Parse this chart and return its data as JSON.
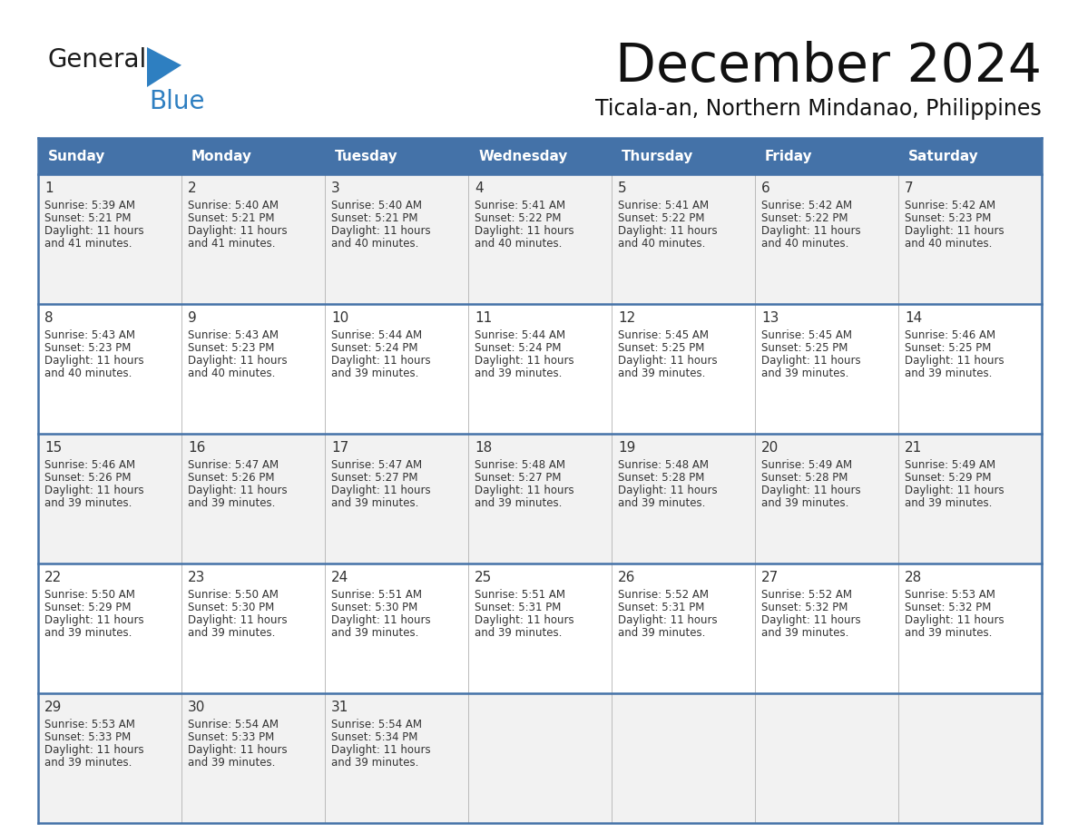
{
  "title": "December 2024",
  "subtitle": "Ticala-an, Northern Mindanao, Philippines",
  "header_color": "#4472a8",
  "header_text_color": "#ffffff",
  "header_days": [
    "Sunday",
    "Monday",
    "Tuesday",
    "Wednesday",
    "Thursday",
    "Friday",
    "Saturday"
  ],
  "row_bg_odd": "#f2f2f2",
  "row_bg_even": "#ffffff",
  "border_color": "#4472a8",
  "text_color": "#333333",
  "days": [
    {
      "day": 1,
      "col": 0,
      "row": 0,
      "sunrise": "5:39 AM",
      "sunset": "5:21 PM",
      "daylight": "11 hours and 41 minutes."
    },
    {
      "day": 2,
      "col": 1,
      "row": 0,
      "sunrise": "5:40 AM",
      "sunset": "5:21 PM",
      "daylight": "11 hours and 41 minutes."
    },
    {
      "day": 3,
      "col": 2,
      "row": 0,
      "sunrise": "5:40 AM",
      "sunset": "5:21 PM",
      "daylight": "11 hours and 40 minutes."
    },
    {
      "day": 4,
      "col": 3,
      "row": 0,
      "sunrise": "5:41 AM",
      "sunset": "5:22 PM",
      "daylight": "11 hours and 40 minutes."
    },
    {
      "day": 5,
      "col": 4,
      "row": 0,
      "sunrise": "5:41 AM",
      "sunset": "5:22 PM",
      "daylight": "11 hours and 40 minutes."
    },
    {
      "day": 6,
      "col": 5,
      "row": 0,
      "sunrise": "5:42 AM",
      "sunset": "5:22 PM",
      "daylight": "11 hours and 40 minutes."
    },
    {
      "day": 7,
      "col": 6,
      "row": 0,
      "sunrise": "5:42 AM",
      "sunset": "5:23 PM",
      "daylight": "11 hours and 40 minutes."
    },
    {
      "day": 8,
      "col": 0,
      "row": 1,
      "sunrise": "5:43 AM",
      "sunset": "5:23 PM",
      "daylight": "11 hours and 40 minutes."
    },
    {
      "day": 9,
      "col": 1,
      "row": 1,
      "sunrise": "5:43 AM",
      "sunset": "5:23 PM",
      "daylight": "11 hours and 40 minutes."
    },
    {
      "day": 10,
      "col": 2,
      "row": 1,
      "sunrise": "5:44 AM",
      "sunset": "5:24 PM",
      "daylight": "11 hours and 39 minutes."
    },
    {
      "day": 11,
      "col": 3,
      "row": 1,
      "sunrise": "5:44 AM",
      "sunset": "5:24 PM",
      "daylight": "11 hours and 39 minutes."
    },
    {
      "day": 12,
      "col": 4,
      "row": 1,
      "sunrise": "5:45 AM",
      "sunset": "5:25 PM",
      "daylight": "11 hours and 39 minutes."
    },
    {
      "day": 13,
      "col": 5,
      "row": 1,
      "sunrise": "5:45 AM",
      "sunset": "5:25 PM",
      "daylight": "11 hours and 39 minutes."
    },
    {
      "day": 14,
      "col": 6,
      "row": 1,
      "sunrise": "5:46 AM",
      "sunset": "5:25 PM",
      "daylight": "11 hours and 39 minutes."
    },
    {
      "day": 15,
      "col": 0,
      "row": 2,
      "sunrise": "5:46 AM",
      "sunset": "5:26 PM",
      "daylight": "11 hours and 39 minutes."
    },
    {
      "day": 16,
      "col": 1,
      "row": 2,
      "sunrise": "5:47 AM",
      "sunset": "5:26 PM",
      "daylight": "11 hours and 39 minutes."
    },
    {
      "day": 17,
      "col": 2,
      "row": 2,
      "sunrise": "5:47 AM",
      "sunset": "5:27 PM",
      "daylight": "11 hours and 39 minutes."
    },
    {
      "day": 18,
      "col": 3,
      "row": 2,
      "sunrise": "5:48 AM",
      "sunset": "5:27 PM",
      "daylight": "11 hours and 39 minutes."
    },
    {
      "day": 19,
      "col": 4,
      "row": 2,
      "sunrise": "5:48 AM",
      "sunset": "5:28 PM",
      "daylight": "11 hours and 39 minutes."
    },
    {
      "day": 20,
      "col": 5,
      "row": 2,
      "sunrise": "5:49 AM",
      "sunset": "5:28 PM",
      "daylight": "11 hours and 39 minutes."
    },
    {
      "day": 21,
      "col": 6,
      "row": 2,
      "sunrise": "5:49 AM",
      "sunset": "5:29 PM",
      "daylight": "11 hours and 39 minutes."
    },
    {
      "day": 22,
      "col": 0,
      "row": 3,
      "sunrise": "5:50 AM",
      "sunset": "5:29 PM",
      "daylight": "11 hours and 39 minutes."
    },
    {
      "day": 23,
      "col": 1,
      "row": 3,
      "sunrise": "5:50 AM",
      "sunset": "5:30 PM",
      "daylight": "11 hours and 39 minutes."
    },
    {
      "day": 24,
      "col": 2,
      "row": 3,
      "sunrise": "5:51 AM",
      "sunset": "5:30 PM",
      "daylight": "11 hours and 39 minutes."
    },
    {
      "day": 25,
      "col": 3,
      "row": 3,
      "sunrise": "5:51 AM",
      "sunset": "5:31 PM",
      "daylight": "11 hours and 39 minutes."
    },
    {
      "day": 26,
      "col": 4,
      "row": 3,
      "sunrise": "5:52 AM",
      "sunset": "5:31 PM",
      "daylight": "11 hours and 39 minutes."
    },
    {
      "day": 27,
      "col": 5,
      "row": 3,
      "sunrise": "5:52 AM",
      "sunset": "5:32 PM",
      "daylight": "11 hours and 39 minutes."
    },
    {
      "day": 28,
      "col": 6,
      "row": 3,
      "sunrise": "5:53 AM",
      "sunset": "5:32 PM",
      "daylight": "11 hours and 39 minutes."
    },
    {
      "day": 29,
      "col": 0,
      "row": 4,
      "sunrise": "5:53 AM",
      "sunset": "5:33 PM",
      "daylight": "11 hours and 39 minutes."
    },
    {
      "day": 30,
      "col": 1,
      "row": 4,
      "sunrise": "5:54 AM",
      "sunset": "5:33 PM",
      "daylight": "11 hours and 39 minutes."
    },
    {
      "day": 31,
      "col": 2,
      "row": 4,
      "sunrise": "5:54 AM",
      "sunset": "5:34 PM",
      "daylight": "11 hours and 39 minutes."
    }
  ],
  "logo_general_color": "#1a1a1a",
  "logo_blue_color": "#2e7fc1",
  "logo_triangle_color": "#2e7fc1"
}
